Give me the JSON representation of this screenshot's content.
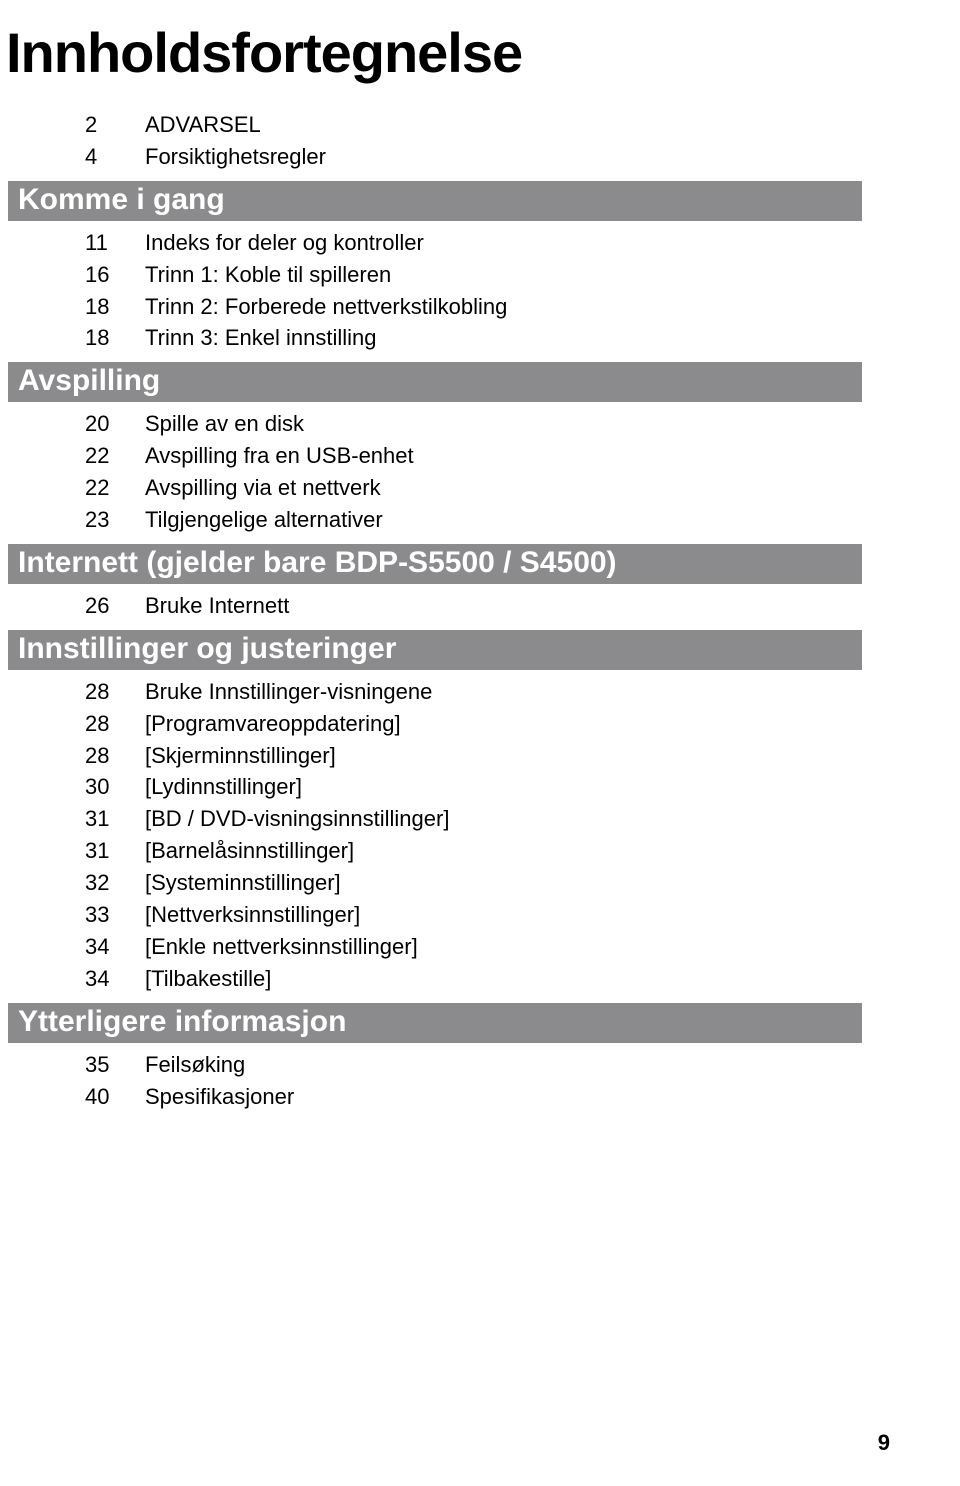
{
  "title": "Innholdsfortegnelse",
  "colors": {
    "section_bar_bg": "#8b8b8d",
    "section_bar_text": "#ffffff",
    "text": "#000000",
    "page_bg": "#ffffff"
  },
  "intro_items": [
    {
      "page": "2",
      "label": "ADVARSEL"
    },
    {
      "page": "4",
      "label": "Forsiktighetsregler"
    }
  ],
  "sections": [
    {
      "heading": "Komme i gang",
      "items": [
        {
          "page": "11",
          "label": "Indeks for deler og kontroller"
        },
        {
          "page": "16",
          "label": "Trinn 1: Koble til spilleren"
        },
        {
          "page": "18",
          "label": "Trinn 2: Forberede nettverkstilkobling"
        },
        {
          "page": "18",
          "label": "Trinn 3: Enkel innstilling"
        }
      ]
    },
    {
      "heading": "Avspilling",
      "items": [
        {
          "page": "20",
          "label": "Spille av en disk"
        },
        {
          "page": "22",
          "label": "Avspilling fra en USB-enhet"
        },
        {
          "page": "22",
          "label": "Avspilling via et nettverk"
        },
        {
          "page": "23",
          "label": "Tilgjengelige alternativer"
        }
      ]
    },
    {
      "heading": "Internett (gjelder bare BDP-S5500 / S4500)",
      "items": [
        {
          "page": "26",
          "label": "Bruke Internett"
        }
      ]
    },
    {
      "heading": "Innstillinger og justeringer",
      "items": [
        {
          "page": "28",
          "label": "Bruke Innstillinger-visningene"
        },
        {
          "page": "28",
          "label": "[Programvareoppdatering]"
        },
        {
          "page": "28",
          "label": "[Skjerminnstillinger]"
        },
        {
          "page": "30",
          "label": "[Lydinnstillinger]"
        },
        {
          "page": "31",
          "label": "[BD / DVD-visningsinnstillinger]"
        },
        {
          "page": "31",
          "label": "[Barnelåsinnstillinger]"
        },
        {
          "page": "32",
          "label": "[Systeminnstillinger]"
        },
        {
          "page": "33",
          "label": "[Nettverksinnstillinger]"
        },
        {
          "page": "34",
          "label": "[Enkle nettverksinnstillinger]"
        },
        {
          "page": "34",
          "label": "[Tilbakestille]"
        }
      ]
    },
    {
      "heading": "Ytterligere informasjon",
      "items": [
        {
          "page": "35",
          "label": "Feilsøking"
        },
        {
          "page": "40",
          "label": "Spesifikasjoner"
        }
      ]
    }
  ],
  "page_number": "9"
}
